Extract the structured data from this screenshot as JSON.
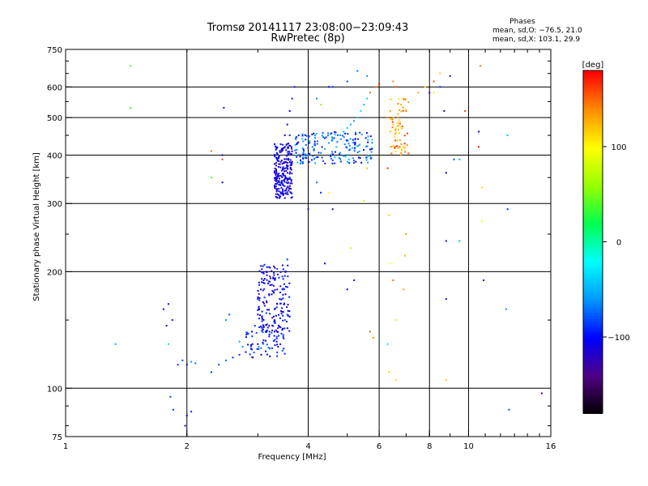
{
  "header": {
    "line1": "Tromsø 20141117 23:08:00−23:09:43",
    "line2": "RwPretec (8p)"
  },
  "phases": {
    "title": "Phases",
    "o_stat": "mean, sd,O: −76.5, 21.0",
    "x_stat": "mean, sd,X: 103.1, 29.9"
  },
  "colorbar": {
    "label": "[deg]",
    "ticks": [
      {
        "value": 100,
        "label": "100"
      },
      {
        "value": 0,
        "label": "0"
      },
      {
        "value": -100,
        "label": "−100"
      }
    ],
    "range": [
      -180,
      180
    ]
  },
  "chart_data": {
    "type": "scatter",
    "xlabel": "Frequency [MHz]",
    "ylabel": "Stationary phase Virtual Height [km]",
    "xscale": "log",
    "yscale": "log",
    "xlim": [
      1,
      16
    ],
    "ylim": [
      75,
      750
    ],
    "x_ticks": [
      {
        "value": 1,
        "label": "1"
      },
      {
        "value": 2,
        "label": "2"
      },
      {
        "value": 4,
        "label": "4"
      },
      {
        "value": 6,
        "label": "6"
      },
      {
        "value": 8,
        "label": "8"
      },
      {
        "value": 10,
        "label": "10"
      },
      {
        "value": 16,
        "label": "16"
      }
    ],
    "y_ticks": [
      {
        "value": 75,
        "label": "75"
      },
      {
        "value": 100,
        "label": "100"
      },
      {
        "value": 200,
        "label": "200"
      },
      {
        "value": 300,
        "label": "300"
      },
      {
        "value": 400,
        "label": "400"
      },
      {
        "value": 500,
        "label": "500"
      },
      {
        "value": 600,
        "label": "600"
      },
      {
        "value": 750,
        "label": "750"
      }
    ],
    "grid_x": [
      2,
      4,
      6,
      8,
      10
    ],
    "grid_y": [
      100,
      200,
      300,
      400,
      500,
      600
    ],
    "color_value": "phase [deg]",
    "points": [
      [
        1.45,
        680,
        40
      ],
      [
        1.45,
        530,
        30
      ],
      [
        1.85,
        88,
        -90
      ],
      [
        1.82,
        95,
        -80
      ],
      [
        1.75,
        160,
        -100
      ],
      [
        1.8,
        165,
        -110
      ],
      [
        1.84,
        150,
        -95
      ],
      [
        1.78,
        145,
        -105
      ],
      [
        1.8,
        130,
        20
      ],
      [
        1.9,
        115,
        -90
      ],
      [
        1.95,
        118,
        -80
      ],
      [
        2.0,
        115,
        -100
      ],
      [
        2.05,
        117,
        -60
      ],
      [
        2.1,
        116,
        -70
      ],
      [
        1.98,
        80,
        -110
      ],
      [
        2.0,
        85,
        -100
      ],
      [
        2.05,
        87,
        -90
      ],
      [
        1.33,
        130,
        -50
      ],
      [
        2.3,
        410,
        150
      ],
      [
        2.45,
        390,
        160
      ],
      [
        2.45,
        400,
        -110
      ],
      [
        2.47,
        530,
        -120
      ],
      [
        2.45,
        340,
        -100
      ],
      [
        2.3,
        350,
        40
      ],
      [
        2.3,
        110,
        -90
      ],
      [
        2.4,
        115,
        -80
      ],
      [
        2.5,
        118,
        -70
      ],
      [
        2.6,
        120,
        -90
      ],
      [
        2.7,
        122,
        -85
      ],
      [
        2.8,
        124,
        -100
      ],
      [
        2.9,
        126,
        -95
      ],
      [
        3.0,
        130,
        -100
      ],
      [
        3.1,
        133,
        -90
      ],
      [
        3.2,
        136,
        -110
      ],
      [
        3.3,
        140,
        -100
      ],
      [
        3.4,
        144,
        -90
      ],
      [
        3.5,
        150,
        -80
      ],
      [
        3.55,
        155,
        -70
      ],
      [
        2.5,
        150,
        -60
      ],
      [
        2.55,
        155,
        -80
      ],
      [
        2.7,
        132,
        -50
      ],
      [
        2.75,
        128,
        -60
      ],
      [
        3.0,
        170,
        -100
      ],
      [
        3.05,
        180,
        -110
      ],
      [
        3.1,
        190,
        -105
      ],
      [
        3.15,
        200,
        -120
      ],
      [
        3.2,
        175,
        -115
      ],
      [
        3.25,
        185,
        -100
      ],
      [
        3.3,
        160,
        -90
      ],
      [
        3.35,
        165,
        -110
      ],
      [
        3.4,
        170,
        -100
      ],
      [
        3.45,
        180,
        -95
      ],
      [
        3.5,
        195,
        -90
      ],
      [
        3.55,
        215,
        -85
      ],
      [
        3.0,
        155,
        -120
      ],
      [
        3.1,
        150,
        -115
      ],
      [
        3.2,
        145,
        -110
      ],
      [
        3.3,
        150,
        -105
      ],
      [
        2.9,
        140,
        -100
      ],
      [
        2.95,
        145,
        -90
      ],
      [
        3.3,
        400,
        -110
      ],
      [
        3.35,
        390,
        -100
      ],
      [
        3.4,
        410,
        -120
      ],
      [
        3.45,
        380,
        -115
      ],
      [
        3.5,
        420,
        -105
      ],
      [
        3.55,
        370,
        -100
      ],
      [
        3.3,
        360,
        -110
      ],
      [
        3.4,
        340,
        -100
      ],
      [
        3.45,
        320,
        -110
      ],
      [
        3.5,
        310,
        -100
      ],
      [
        3.55,
        330,
        -90
      ],
      [
        3.6,
        350,
        -80
      ],
      [
        3.5,
        450,
        -100
      ],
      [
        3.55,
        480,
        -110
      ],
      [
        3.6,
        520,
        -100
      ],
      [
        3.65,
        560,
        -90
      ],
      [
        3.7,
        600,
        -110
      ],
      [
        3.6,
        450,
        -90
      ],
      [
        3.8,
        400,
        -80
      ],
      [
        3.9,
        410,
        -70
      ],
      [
        4.0,
        400,
        -60
      ],
      [
        4.1,
        420,
        -70
      ],
      [
        4.2,
        395,
        -80
      ],
      [
        4.3,
        405,
        -60
      ],
      [
        4.4,
        415,
        -50
      ],
      [
        4.5,
        430,
        -60
      ],
      [
        4.6,
        440,
        -50
      ],
      [
        4.7,
        420,
        -40
      ],
      [
        4.8,
        450,
        -60
      ],
      [
        4.9,
        460,
        -50
      ],
      [
        5.0,
        470,
        -40
      ],
      [
        5.1,
        480,
        -50
      ],
      [
        5.2,
        490,
        -60
      ],
      [
        5.3,
        500,
        -40
      ],
      [
        5.4,
        520,
        -30
      ],
      [
        5.5,
        540,
        -50
      ],
      [
        5.6,
        560,
        -40
      ],
      [
        5.7,
        580,
        150
      ],
      [
        5.6,
        640,
        -60
      ],
      [
        5.3,
        660,
        -70
      ],
      [
        5.0,
        620,
        -80
      ],
      [
        4.6,
        600,
        -90
      ],
      [
        4.5,
        600,
        -100
      ],
      [
        4.2,
        560,
        -60
      ],
      [
        4.3,
        540,
        60
      ],
      [
        4.2,
        340,
        -70
      ],
      [
        4.3,
        320,
        -90
      ],
      [
        4.5,
        320,
        100
      ],
      [
        4.0,
        290,
        -110
      ],
      [
        4.4,
        210,
        -100
      ],
      [
        4.6,
        290,
        -120
      ],
      [
        5.0,
        180,
        -110
      ],
      [
        5.2,
        190,
        -110
      ],
      [
        5.1,
        230,
        80
      ],
      [
        5.5,
        305,
        70
      ],
      [
        5.6,
        370,
        120
      ],
      [
        5.7,
        140,
        150
      ],
      [
        5.8,
        135,
        140
      ],
      [
        5.9,
        600,
        150
      ],
      [
        6.0,
        610,
        170
      ],
      [
        6.3,
        500,
        140
      ],
      [
        6.4,
        520,
        130
      ],
      [
        6.5,
        480,
        120
      ],
      [
        6.6,
        460,
        110
      ],
      [
        6.7,
        500,
        140
      ],
      [
        6.8,
        540,
        130
      ],
      [
        6.9,
        560,
        120
      ],
      [
        7.0,
        520,
        150
      ],
      [
        6.5,
        620,
        140
      ],
      [
        6.6,
        600,
        160
      ],
      [
        6.3,
        370,
        170
      ],
      [
        6.35,
        280,
        120
      ],
      [
        6.4,
        210,
        100
      ],
      [
        6.5,
        190,
        150
      ],
      [
        6.6,
        150,
        110
      ],
      [
        6.3,
        130,
        -30
      ],
      [
        6.35,
        110,
        120
      ],
      [
        6.6,
        105,
        110
      ],
      [
        6.9,
        180,
        130
      ],
      [
        6.95,
        220,
        130
      ],
      [
        7.0,
        250,
        140
      ],
      [
        6.8,
        400,
        140
      ],
      [
        6.9,
        420,
        120
      ],
      [
        7.5,
        580,
        130
      ],
      [
        7.8,
        600,
        110
      ],
      [
        8.2,
        620,
        160
      ],
      [
        8.5,
        650,
        120
      ],
      [
        8.2,
        580,
        90
      ],
      [
        8.0,
        580,
        -120
      ],
      [
        8.5,
        600,
        -90
      ],
      [
        9.0,
        640,
        -110
      ],
      [
        8.7,
        520,
        -100
      ],
      [
        8.8,
        360,
        -110
      ],
      [
        9.2,
        390,
        -80
      ],
      [
        9.5,
        390,
        -50
      ],
      [
        9.5,
        240,
        -50
      ],
      [
        8.8,
        240,
        -110
      ],
      [
        8.8,
        170,
        -110
      ],
      [
        8.8,
        105,
        120
      ],
      [
        9.8,
        520,
        160
      ],
      [
        10.6,
        460,
        -110
      ],
      [
        10.6,
        420,
        170
      ],
      [
        10.8,
        330,
        110
      ],
      [
        10.8,
        270,
        100
      ],
      [
        10.9,
        190,
        -120
      ],
      [
        10.7,
        680,
        150
      ],
      [
        12.5,
        290,
        -90
      ],
      [
        12.5,
        450,
        -40
      ],
      [
        12.4,
        160,
        -60
      ],
      [
        12.6,
        88,
        -80
      ],
      [
        15.2,
        97,
        -140
      ]
    ]
  }
}
